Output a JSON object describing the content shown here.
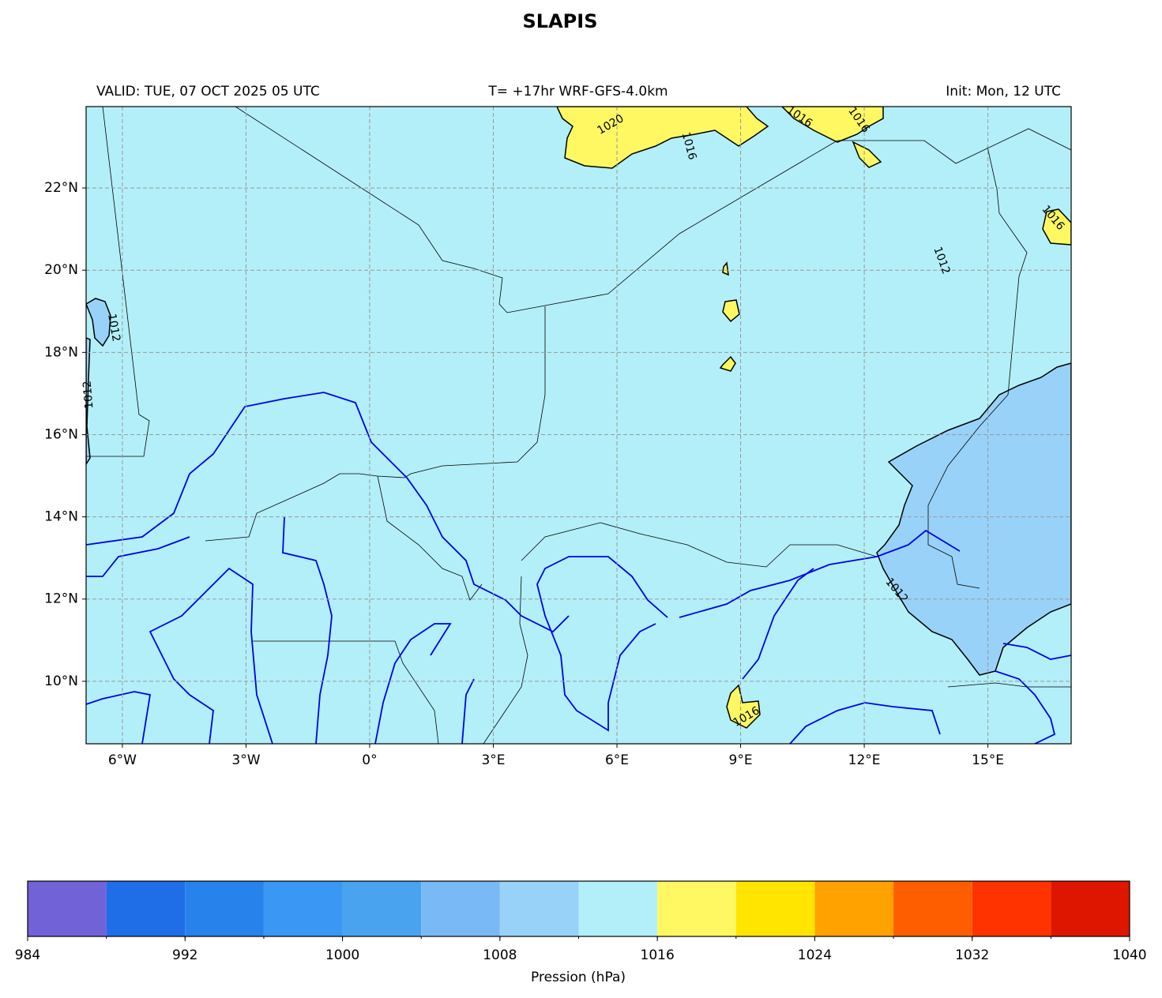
{
  "chart_data": {
    "type": "map",
    "title": "SLAPIS",
    "subtitle_left": "VALID: TUE, 07 OCT 2025 05 UTC",
    "subtitle_center": "T= +17hr WRF-GFS-4.0km",
    "subtitle_right": "Init: Mon, 12 UTC",
    "xlim": [
      -6.88,
      17.02
    ],
    "ylim": [
      8.48,
      23.98
    ],
    "xticks": [
      {
        "value": -6,
        "label": "6°W"
      },
      {
        "value": -3,
        "label": "3°W"
      },
      {
        "value": 0,
        "label": "0°"
      },
      {
        "value": 3,
        "label": "3°E"
      },
      {
        "value": 6,
        "label": "6°E"
      },
      {
        "value": 9,
        "label": "9°E"
      },
      {
        "value": 12,
        "label": "12°E"
      },
      {
        "value": 15,
        "label": "15°E"
      }
    ],
    "yticks": [
      {
        "value": 10,
        "label": "10°N"
      },
      {
        "value": 12,
        "label": "12°N"
      },
      {
        "value": 14,
        "label": "14°N"
      },
      {
        "value": 16,
        "label": "16°N"
      },
      {
        "value": 18,
        "label": "18°N"
      },
      {
        "value": 20,
        "label": "20°N"
      },
      {
        "value": 22,
        "label": "22°N"
      }
    ],
    "grid": true,
    "contour_labels": [
      1020,
      1016,
      1016,
      1016,
      1016,
      1012,
      1012,
      1012,
      1012,
      1016
    ],
    "colorbar": {
      "levels": [
        984,
        988,
        992,
        996,
        1000,
        1004,
        1008,
        1012,
        1016,
        1020,
        1024,
        1028,
        1032,
        1036,
        1040
      ],
      "colors": [
        "#7262d8",
        "#1f6ee8",
        "#2782ec",
        "#3b97f4",
        "#4aa3ef",
        "#79b9f6",
        "#99d2f8",
        "#b3eff9",
        "#fff863",
        "#ffe500",
        "#ffa200",
        "#ff5e00",
        "#ff3300",
        "#de1600"
      ],
      "ticks": [
        984,
        992,
        1000,
        1008,
        1016,
        1024,
        1032,
        1040
      ],
      "label": "Pression (hPa)"
    }
  }
}
